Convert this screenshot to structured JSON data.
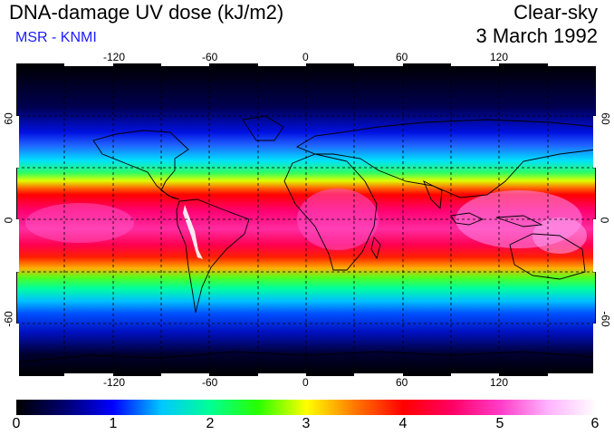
{
  "header": {
    "title": "DNA-damage UV dose (kJ/m2)",
    "subtitle": "MSR - KNMI",
    "condition": "Clear-sky",
    "date": "3 March 1992"
  },
  "map": {
    "projection": "equirectangular",
    "lon_range": [
      -180,
      180
    ],
    "lat_range": [
      -90,
      90
    ],
    "gridlines": "dashed",
    "lon_ticks": [
      "-120",
      "-60",
      "0",
      "60",
      "120"
    ],
    "lat_ticks": [
      "60",
      "0",
      "-60"
    ]
  },
  "colorbar": {
    "min": 0,
    "max": 6,
    "labels": [
      "0",
      "1",
      "2",
      "3",
      "4",
      "5",
      "6"
    ],
    "stops": [
      "#000000",
      "#000070",
      "#0000ff",
      "#00c8ff",
      "#00ff96",
      "#28ff00",
      "#ffff00",
      "#ff7800",
      "#ff0000",
      "#ff0064",
      "#ff3cc8",
      "#ffb4ff",
      "#ffffff"
    ]
  }
}
